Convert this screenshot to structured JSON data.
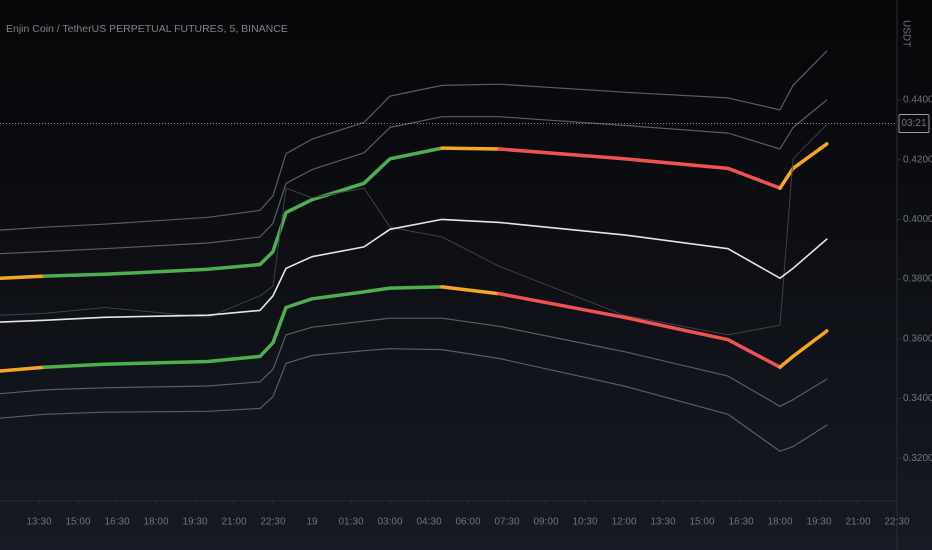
{
  "chart_data": {
    "type": "line",
    "title": "Enjin Coin / TetherUS PERPETUAL FUTURES, 5, BINANCE",
    "y_unit": "USDT",
    "x": [
      0,
      1.7,
      4,
      8,
      10,
      10.5,
      11,
      12,
      14,
      15,
      17,
      19.2,
      24,
      28,
      30,
      30.5,
      31.8
    ],
    "xlim": [
      0,
      34.5
    ],
    "ylim": [
      0.306,
      0.4735
    ],
    "xticks": [
      {
        "value": 1.5,
        "label": "13:30"
      },
      {
        "value": 3,
        "label": "15:00"
      },
      {
        "value": 4.5,
        "label": "16:30"
      },
      {
        "value": 6,
        "label": "18:00"
      },
      {
        "value": 7.5,
        "label": "19:30"
      },
      {
        "value": 9,
        "label": "21:00"
      },
      {
        "value": 10.5,
        "label": "22:30"
      },
      {
        "value": 12,
        "label": "19"
      },
      {
        "value": 13.5,
        "label": "01:30"
      },
      {
        "value": 15,
        "label": "03:00"
      },
      {
        "value": 16.5,
        "label": "04:30"
      },
      {
        "value": 18,
        "label": "06:00"
      },
      {
        "value": 19.5,
        "label": "07:30"
      },
      {
        "value": 21,
        "label": "09:00"
      },
      {
        "value": 22.5,
        "label": "10:30"
      },
      {
        "value": 24,
        "label": "12:00"
      },
      {
        "value": 25.5,
        "label": "13:30"
      },
      {
        "value": 27,
        "label": "15:00"
      },
      {
        "value": 28.5,
        "label": "16:30"
      },
      {
        "value": 30,
        "label": "18:00"
      },
      {
        "value": 31.5,
        "label": "19:30"
      },
      {
        "value": 33,
        "label": "21:00"
      },
      {
        "value": 34.5,
        "label": "22:30"
      }
    ],
    "yticks": [
      {
        "value": 0.32,
        "label": "0.3200"
      },
      {
        "value": 0.34,
        "label": "0.3400"
      },
      {
        "value": 0.36,
        "label": "0.3600"
      },
      {
        "value": 0.38,
        "label": "0.3800"
      },
      {
        "value": 0.4,
        "label": "0.4000"
      },
      {
        "value": 0.42,
        "label": "0.4200"
      },
      {
        "value": 0.44,
        "label": "0.4400"
      }
    ],
    "grid": false,
    "last_price": 0.4321,
    "last_price_label": "03:21",
    "series": [
      {
        "color": "#5a5d66",
        "width": 1.2,
        "values": [
          0.3964,
          0.3974,
          0.3984,
          0.4007,
          0.403,
          0.4079,
          0.422,
          0.4269,
          0.4325,
          0.4413,
          0.4449,
          0.4453,
          0.4426,
          0.4407,
          0.4367,
          0.4449,
          0.4564
        ]
      },
      {
        "color": "#5a5d66",
        "width": 1.2,
        "values": [
          0.3885,
          0.3892,
          0.3902,
          0.3921,
          0.3941,
          0.3987,
          0.4121,
          0.4167,
          0.4223,
          0.4308,
          0.4344,
          0.4344,
          0.4315,
          0.4289,
          0.4236,
          0.4308,
          0.44
        ]
      },
      {
        "color": "#f5a623",
        "width": 3.5,
        "colors": [
          "#f5a623",
          "#4caf50",
          "#4caf50",
          "#4caf50",
          "#4caf50",
          "#4caf50",
          "#4caf50",
          "#4caf50",
          "#4caf50",
          "#4caf50",
          "#f5a623",
          "#ef5350",
          "#ef5350",
          "#ef5350",
          "#f5a623",
          "#f5a623",
          "#f5a623"
        ],
        "values": [
          0.3803,
          0.381,
          0.3816,
          0.3833,
          0.3849,
          0.3892,
          0.4023,
          0.4066,
          0.4121,
          0.4203,
          0.4239,
          0.4236,
          0.4203,
          0.4171,
          0.4105,
          0.4171,
          0.4253
        ]
      },
      {
        "color": "#3e414a",
        "width": 1,
        "values": [
          0.3679,
          0.3685,
          0.3705,
          0.3672,
          0.3744,
          0.3777,
          0.4105,
          0.4072,
          0.4105,
          0.3974,
          0.3941,
          0.3843,
          0.3679,
          0.3613,
          0.3646,
          0.4203,
          0.4318
        ]
      },
      {
        "color": "#e6e6e6",
        "width": 1.6,
        "values": [
          0.3656,
          0.3662,
          0.3672,
          0.3679,
          0.3695,
          0.3744,
          0.3836,
          0.3875,
          0.3908,
          0.3967,
          0.4,
          0.399,
          0.3948,
          0.3902,
          0.3803,
          0.3836,
          0.3934
        ]
      },
      {
        "color": "#f5a623",
        "width": 3.5,
        "colors": [
          "#f5a623",
          "#4caf50",
          "#4caf50",
          "#4caf50",
          "#4caf50",
          "#4caf50",
          "#4caf50",
          "#4caf50",
          "#4caf50",
          "#4caf50",
          "#f5a623",
          "#ef5350",
          "#ef5350",
          "#ef5350",
          "#f5a623",
          "#f5a623",
          "#f5a623"
        ],
        "values": [
          0.3492,
          0.3505,
          0.3515,
          0.3524,
          0.3541,
          0.3587,
          0.3705,
          0.3734,
          0.3757,
          0.377,
          0.3774,
          0.3751,
          0.3672,
          0.3597,
          0.3505,
          0.3541,
          0.3626
        ]
      },
      {
        "color": "#5a5d66",
        "width": 1.2,
        "values": [
          0.3416,
          0.3429,
          0.3436,
          0.3442,
          0.3456,
          0.3498,
          0.3613,
          0.3639,
          0.3659,
          0.3669,
          0.3669,
          0.3642,
          0.3557,
          0.3475,
          0.3374,
          0.3396,
          0.3465
        ]
      },
      {
        "color": "#5a5d66",
        "width": 1.2,
        "values": [
          0.3334,
          0.3347,
          0.3354,
          0.3357,
          0.3367,
          0.3406,
          0.3518,
          0.3544,
          0.356,
          0.3567,
          0.3564,
          0.3534,
          0.3442,
          0.3347,
          0.3223,
          0.3239,
          0.3311
        ]
      }
    ]
  }
}
